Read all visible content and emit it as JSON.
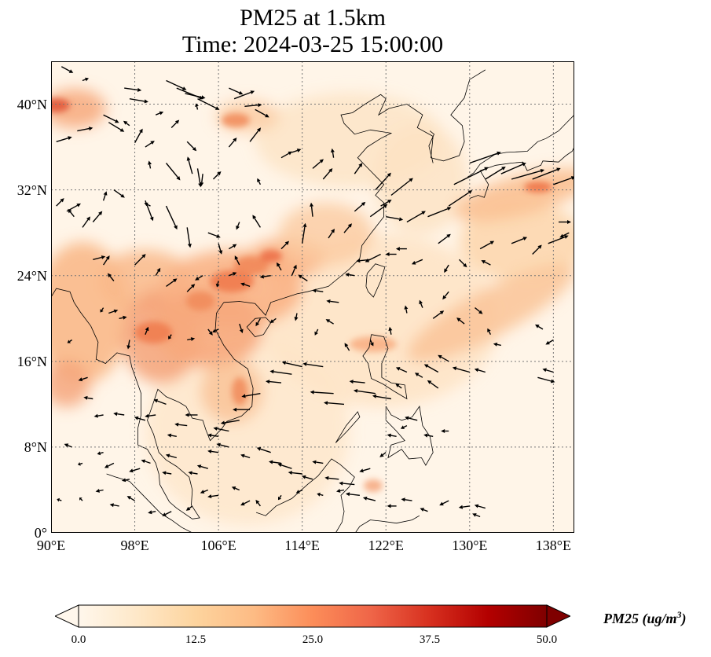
{
  "title": {
    "line1": "PM25 at 1.5km",
    "line2": "Time: 2024-03-25 15:00:00"
  },
  "map": {
    "projection": "PlateCarree",
    "lon_range": [
      90,
      140
    ],
    "lat_range": [
      0,
      44
    ],
    "gridlines": true,
    "field": "PM25",
    "overlay": "wind vectors (quiver)",
    "lat_ticks": [
      {
        "value": 0,
        "label": "0°"
      },
      {
        "value": 8,
        "label": "8°N"
      },
      {
        "value": 16,
        "label": "16°N"
      },
      {
        "value": 24,
        "label": "24°N"
      },
      {
        "value": 32,
        "label": "32°N"
      },
      {
        "value": 40,
        "label": "40°N"
      }
    ],
    "lon_ticks": [
      {
        "value": 90,
        "label": "90°E"
      },
      {
        "value": 98,
        "label": "98°E"
      },
      {
        "value": 106,
        "label": "106°E"
      },
      {
        "value": 114,
        "label": "114°E"
      },
      {
        "value": 122,
        "label": "122°E"
      },
      {
        "value": 130,
        "label": "130°E"
      },
      {
        "value": 138,
        "label": "138°E"
      }
    ]
  },
  "colorbar": {
    "label": "PM25 (ug/m",
    "label_sup": "3",
    "label_close": ")",
    "cmap": "OrRd",
    "range": [
      0,
      50
    ],
    "extend": "both",
    "colors": [
      "#fff7ec",
      "#fee8c8",
      "#fdd49e",
      "#fdbb84",
      "#fc8d59",
      "#ef6548",
      "#d7301f",
      "#b30000",
      "#7f0000"
    ],
    "ticks": [
      {
        "value": 0,
        "label": "0.0"
      },
      {
        "value": 12.5,
        "label": "12.5"
      },
      {
        "value": 25,
        "label": "25.0"
      },
      {
        "value": 37.5,
        "label": "37.5"
      },
      {
        "value": 50,
        "label": "50.0"
      }
    ]
  }
}
